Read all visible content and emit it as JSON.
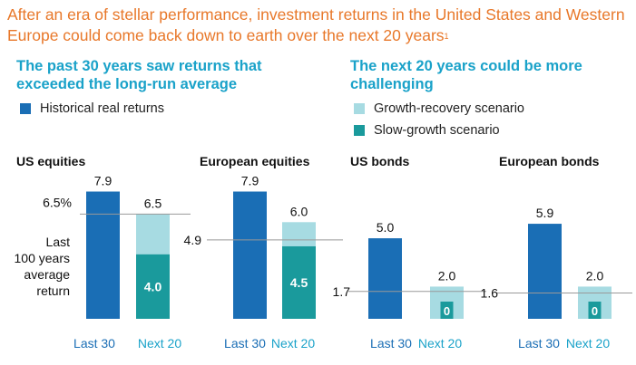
{
  "title": "After an era of stellar performance, investment returns in the United States and Western Europe could come back down to earth over the next 20 years",
  "title_footnote": "1",
  "left_subhead": "The past 30 years saw returns that exceeded the long-run average",
  "right_subhead": "The next 20 years could be more challenging",
  "legend": [
    {
      "label": "Historical real returns",
      "color": "#1a6eb5"
    },
    {
      "label": "Growth-recovery scenario",
      "color": "#a7dbe2"
    },
    {
      "label": "Slow-growth scenario",
      "color": "#1a9a9c"
    }
  ],
  "chart_data": {
    "type": "bar",
    "ylim": [
      0,
      8.5
    ],
    "long_run_label": [
      "Last",
      "100 years",
      "average",
      "return"
    ],
    "panels": [
      {
        "title": "US equities",
        "reference": 6.5,
        "reference_label": "6.5%",
        "last30": 7.9,
        "last30_label": "7.9",
        "growth_recovery": 6.5,
        "growth_recovery_label": "6.5",
        "slow_growth": 4.0,
        "slow_growth_label": "4.0"
      },
      {
        "title": "European equities",
        "reference": 4.9,
        "reference_label": "4.9",
        "last30": 7.9,
        "last30_label": "7.9",
        "growth_recovery": 6.0,
        "growth_recovery_label": "6.0",
        "slow_growth": 4.5,
        "slow_growth_label": "4.5"
      },
      {
        "title": "US bonds",
        "reference": 1.7,
        "reference_label": "1.7",
        "last30": 5.0,
        "last30_label": "5.0",
        "growth_recovery": 2.0,
        "growth_recovery_label": "2.0",
        "slow_growth": 0,
        "slow_growth_label": "0"
      },
      {
        "title": "European bonds",
        "reference": 1.6,
        "reference_label": "1.6",
        "last30": 5.9,
        "last30_label": "5.9",
        "growth_recovery": 2.0,
        "growth_recovery_label": "2.0",
        "slow_growth": 0,
        "slow_growth_label": "0"
      }
    ],
    "x_labels": [
      "Last 30",
      "Next 20"
    ],
    "colors": {
      "historical": "#1a6eb5",
      "growth_recovery": "#a7dbe2",
      "slow_growth": "#1a9a9c",
      "reference_line": "#999999",
      "last30_label": "#1a6eb5",
      "next20_label": "#1aa2c9"
    }
  }
}
